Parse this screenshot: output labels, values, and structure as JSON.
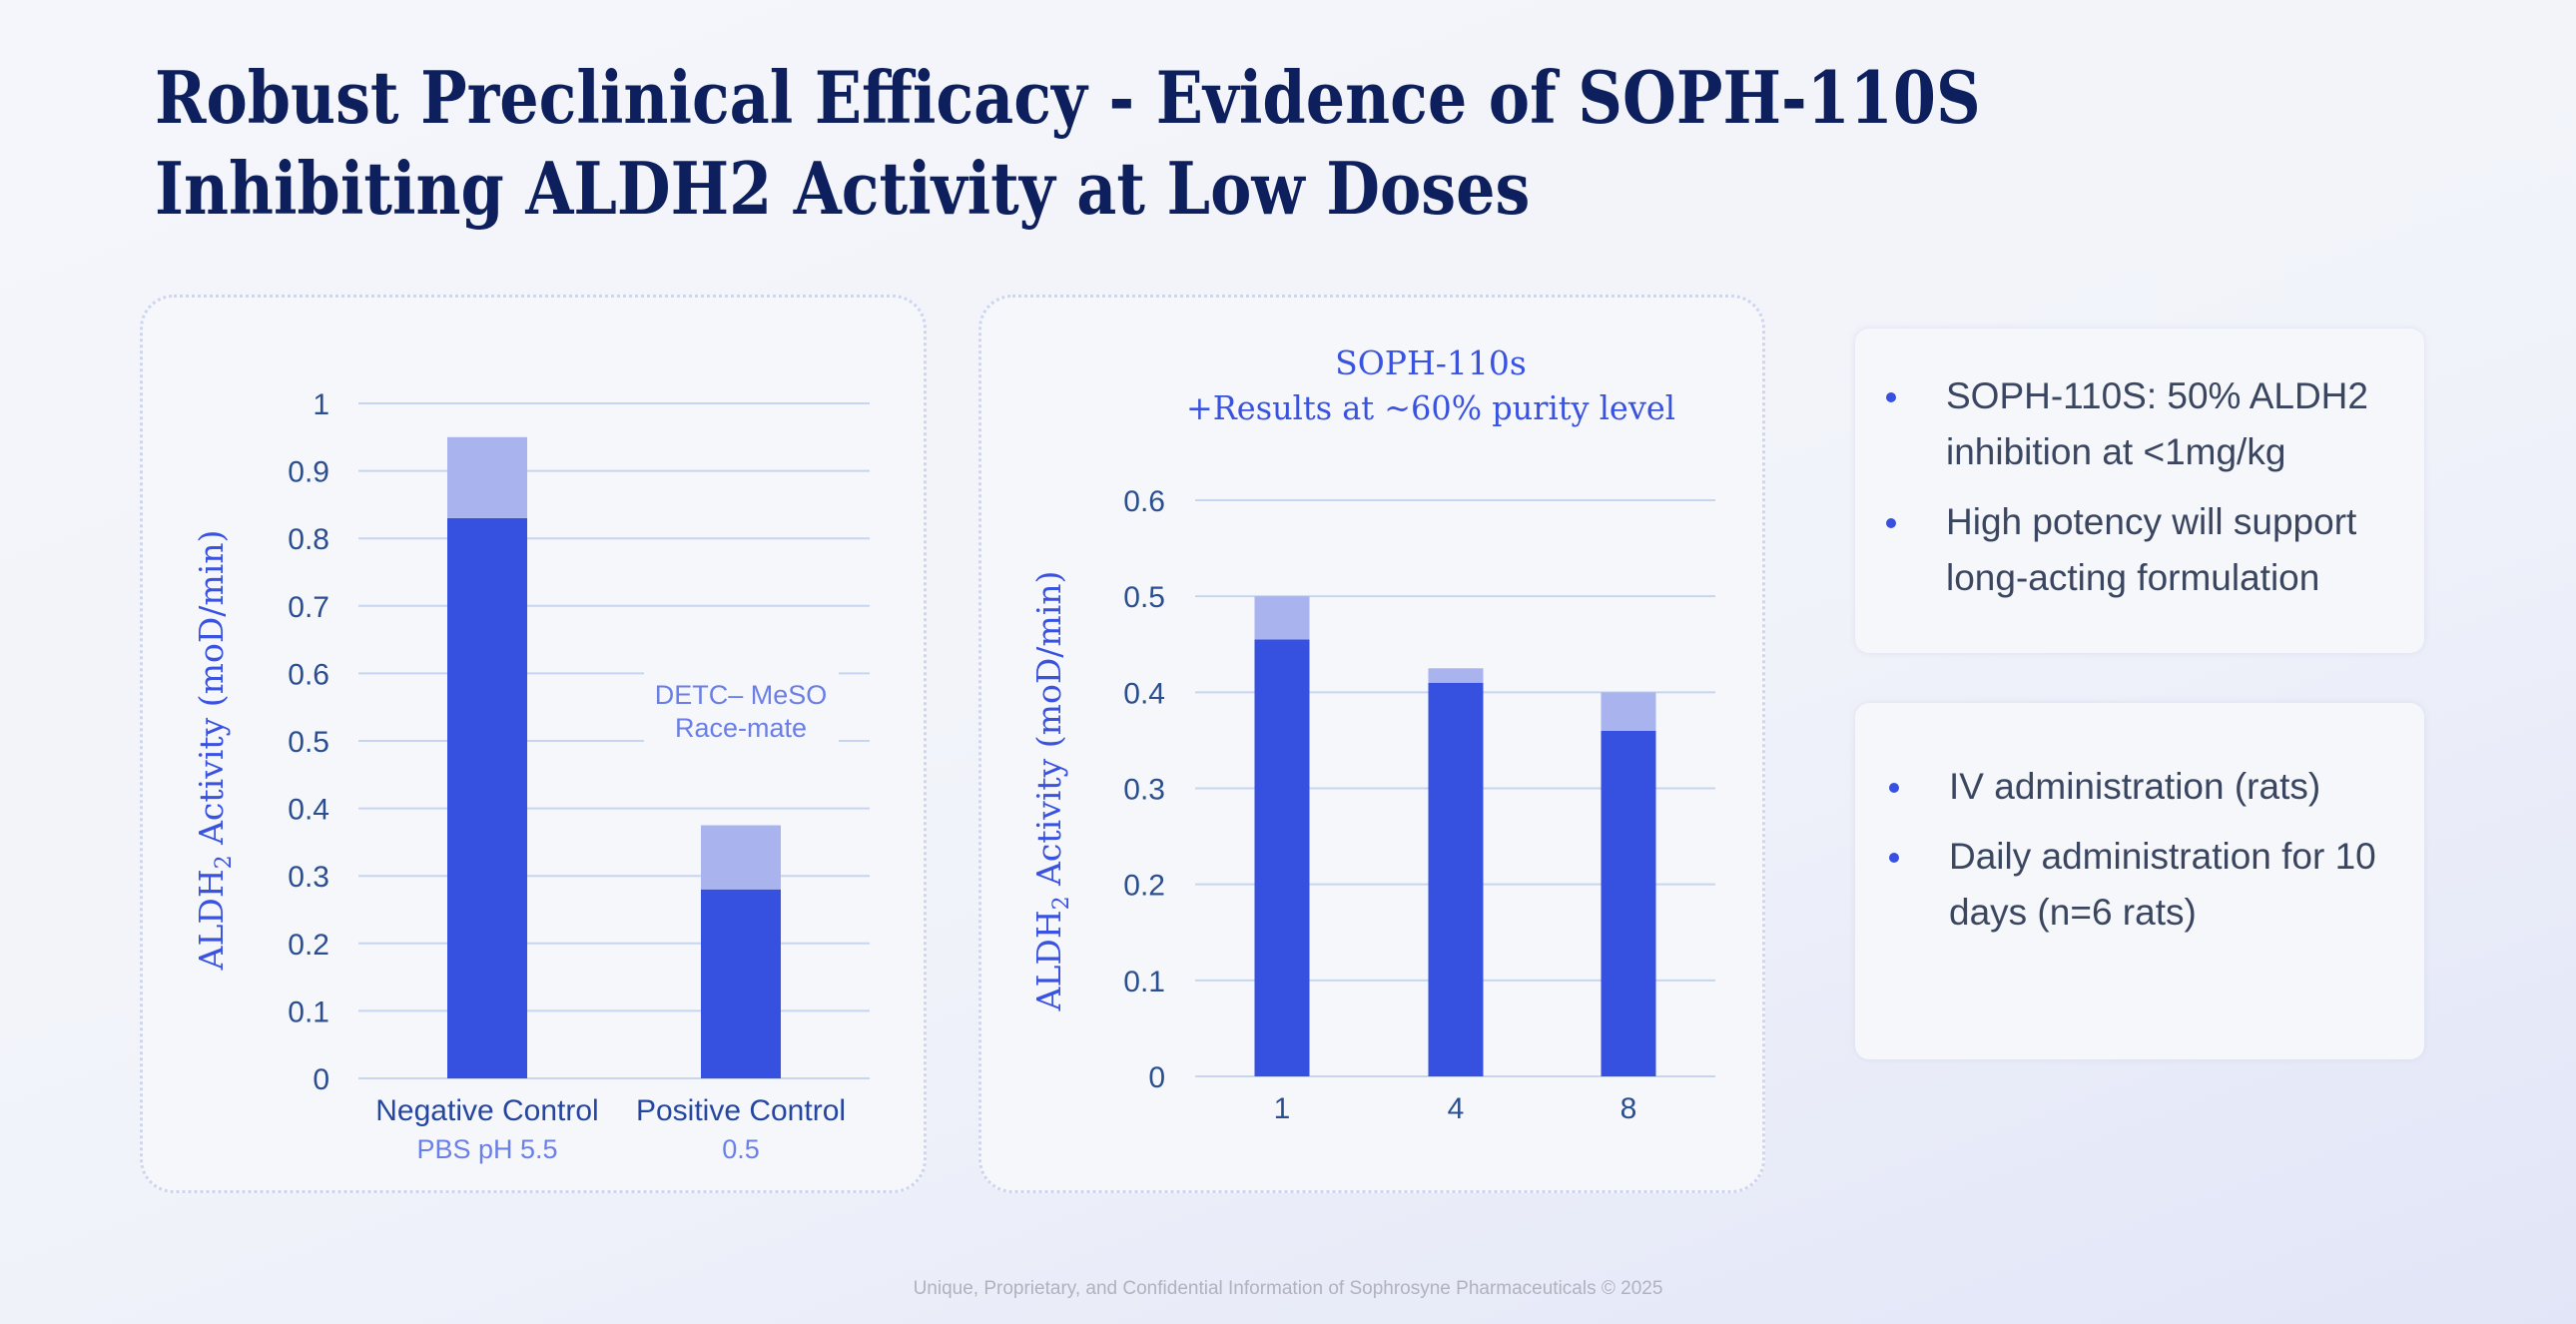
{
  "title": {
    "line1": "Robust Preclinical Efficacy - Evidence of SOPH-110S",
    "line2": "Inhibiting ALDH2 Activity at Low Doses"
  },
  "colors": {
    "base": "#3650e0",
    "top": "#a9b4ef",
    "grid": "#c8d5f0",
    "tick": "#2b4e91",
    "axis_label": "#3a52e0",
    "title": "#0d1f5c"
  },
  "chart_data": [
    {
      "type": "bar",
      "stacked": true,
      "title": "",
      "ylabel_main": "ALDH",
      "ylabel_sub": "2",
      "ylabel_rest": " Activity (moD/min)",
      "ylim": [
        0,
        1
      ],
      "yticks": [
        "0",
        "0.1",
        "0.2",
        "0.3",
        "0.4",
        "0.5",
        "0.6",
        "0.7",
        "0.8",
        "0.9",
        "1"
      ],
      "categories": [
        "Negative Control",
        "Positive Control"
      ],
      "sublabels": [
        "PBS pH 5.5",
        "0.5"
      ],
      "series": [
        {
          "values": [
            0.83,
            0.28
          ]
        },
        {
          "values": [
            0.12,
            0.095
          ]
        }
      ],
      "annotation": {
        "line1": "DETC– MeSO",
        "line2": "Race-mate"
      },
      "grid": true
    },
    {
      "type": "bar",
      "stacked": true,
      "title_line1": "SOPH-110s",
      "title_line2": "+Results at ~60% purity level",
      "ylabel_main": "ALDH",
      "ylabel_sub": "2",
      "ylabel_rest": " Activity (moD/min)",
      "ylim": [
        0,
        0.6
      ],
      "yticks": [
        "0",
        "0.1",
        "0.2",
        "0.3",
        "0.4",
        "0.5",
        "0.6"
      ],
      "categories": [
        "1",
        "4",
        "8"
      ],
      "series": [
        {
          "values": [
            0.455,
            0.41,
            0.36
          ]
        },
        {
          "values": [
            0.045,
            0.015,
            0.04
          ]
        }
      ],
      "grid": true
    }
  ],
  "box1": {
    "items": [
      "SOPH-110S: 50% ALDH2 inhibition at <1mg/kg",
      "High potency will support long-acting formulation"
    ]
  },
  "box2": {
    "items": [
      "IV administration (rats)",
      "Daily administration for 10 days (n=6 rats)"
    ]
  },
  "footer": "Unique, Proprietary, and Confidential Information of Sophrosyne Pharmaceuticals © 2025"
}
